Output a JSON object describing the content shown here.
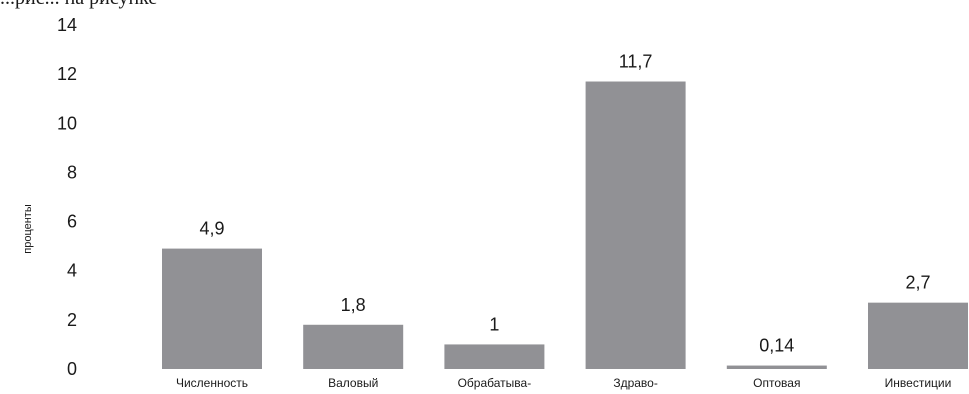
{
  "clipped_top_text": "...рис... на рисунке",
  "chart_data": {
    "type": "bar",
    "ylabel": "проценты",
    "ylim": [
      0,
      14
    ],
    "yticks": [
      "0",
      "2",
      "4",
      "6",
      "8",
      "10",
      "12",
      "14"
    ],
    "categories": [
      "Численность",
      "Валовый",
      "Обрабатыва-",
      "Здраво-",
      "Оптовая",
      "Инвестиции"
    ],
    "values": [
      4.9,
      1.8,
      1,
      11.7,
      0.14,
      2.7
    ],
    "value_labels": [
      "4,9",
      "1,8",
      "1",
      "11,7",
      "0,14",
      "2,7"
    ],
    "grid": false,
    "bar_color": "#919195",
    "text_color": "#1a1a1a"
  }
}
